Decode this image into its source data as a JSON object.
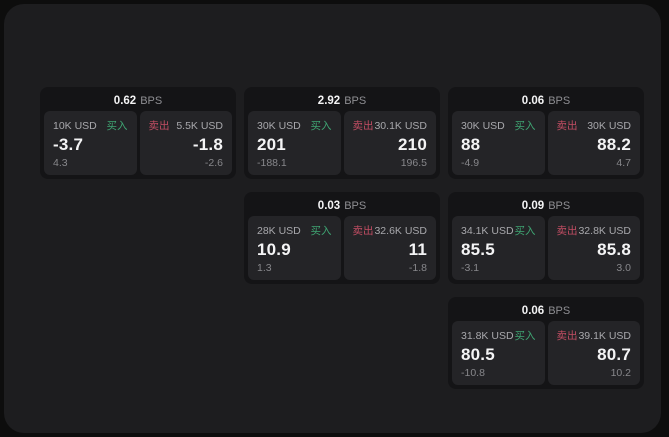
{
  "labels": {
    "buy": "买入",
    "sell": "卖出",
    "bps_unit": "BPS"
  },
  "colors": {
    "buy_green": "#3fa573",
    "sell_red": "#c14d63",
    "frame_bg": "#1d1d1f",
    "card_bg": "#141416",
    "panel_bg": "#242427"
  },
  "cards": [
    {
      "bps": "0.62",
      "buy": {
        "amount": "10K USD",
        "value": "-3.7",
        "sub": "4.3"
      },
      "sell": {
        "amount": "5.5K USD",
        "value": "-1.8",
        "sub": "-2.6"
      }
    },
    {
      "bps": "2.92",
      "buy": {
        "amount": "30K USD",
        "value": "201",
        "sub": "-188.1"
      },
      "sell": {
        "amount": "30.1K USD",
        "value": "210",
        "sub": "196.5"
      }
    },
    {
      "bps": "0.06",
      "buy": {
        "amount": "30K USD",
        "value": "88",
        "sub": "-4.9"
      },
      "sell": {
        "amount": "30K USD",
        "value": "88.2",
        "sub": "4.7"
      }
    },
    {
      "bps": "0.03",
      "buy": {
        "amount": "28K USD",
        "value": "10.9",
        "sub": "1.3"
      },
      "sell": {
        "amount": "32.6K USD",
        "value": "11",
        "sub": "-1.8"
      }
    },
    {
      "bps": "0.09",
      "buy": {
        "amount": "34.1K USD",
        "value": "85.5",
        "sub": "-3.1"
      },
      "sell": {
        "amount": "32.8K USD",
        "value": "85.8",
        "sub": "3.0"
      }
    },
    {
      "bps": "0.06",
      "buy": {
        "amount": "31.8K USD",
        "value": "80.5",
        "sub": "-10.8"
      },
      "sell": {
        "amount": "39.1K USD",
        "value": "80.7",
        "sub": "10.2"
      }
    }
  ]
}
